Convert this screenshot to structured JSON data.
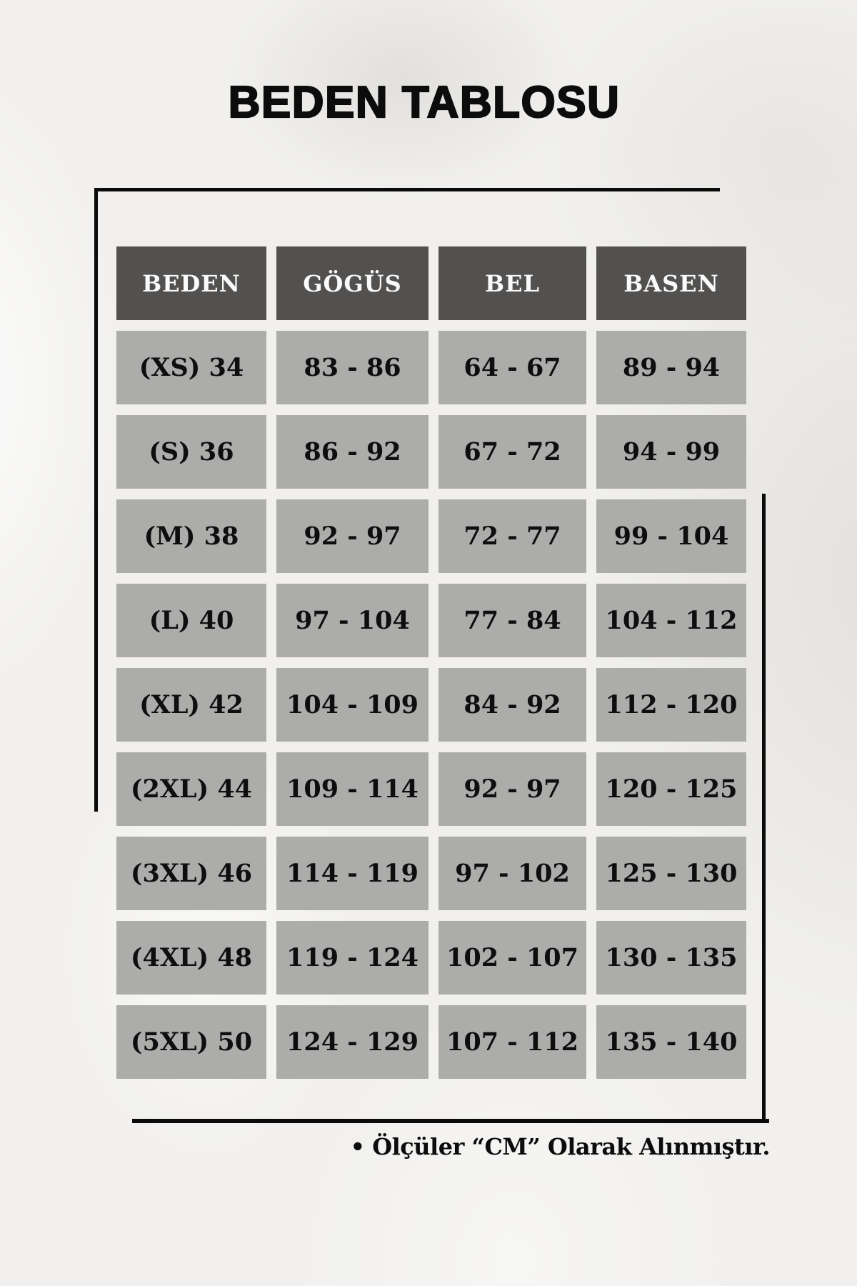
{
  "page": {
    "title": "BEDEN TABLOSU",
    "footnote": "• Ölçüler “CM” Olarak Alınmıştır."
  },
  "table": {
    "headers": [
      "BEDEN",
      "GÖGÜS",
      "BEL",
      "BASEN"
    ],
    "rows": [
      [
        "(XS) 34",
        "83 - 86",
        "64 - 67",
        "89 - 94"
      ],
      [
        "(S) 36",
        "86 - 92",
        "67 - 72",
        "94 - 99"
      ],
      [
        "(M) 38",
        "92 - 97",
        "72 - 77",
        "99 - 104"
      ],
      [
        "(L) 40",
        "97 - 104",
        "77 - 84",
        "104 - 112"
      ],
      [
        "(XL) 42",
        "104 - 109",
        "84 - 92",
        "112 - 120"
      ],
      [
        "(2XL) 44",
        "109 - 114",
        "92 - 97",
        "120 - 125"
      ],
      [
        "(3XL) 46",
        "114 - 119",
        "97 - 102",
        "125 - 130"
      ],
      [
        "(4XL) 48",
        "119 - 124",
        "102 - 107",
        "130 - 135"
      ],
      [
        "(5XL) 50",
        "124 - 129",
        "107 - 112",
        "135 - 140"
      ]
    ]
  },
  "theme": {
    "page_bg": "#f1f0ee",
    "header_bg": "#53514f",
    "header_text": "#fafafa",
    "cell_bg": "#acacab",
    "cell_text": "#0e0e0e",
    "frame": "#0b0b0b",
    "title_text": "#0c0c0c"
  },
  "chart_data": {
    "type": "table",
    "title": "BEDEN TABLOSU",
    "columns": [
      "BEDEN",
      "GÖGÜS",
      "BEL",
      "BASEN"
    ],
    "rows": [
      [
        "(XS) 34",
        "83 - 86",
        "64 - 67",
        "89 - 94"
      ],
      [
        "(S) 36",
        "86 - 92",
        "67 - 72",
        "94 - 99"
      ],
      [
        "(M) 38",
        "92 - 97",
        "72 - 77",
        "99 - 104"
      ],
      [
        "(L) 40",
        "97 - 104",
        "77 - 84",
        "104 - 112"
      ],
      [
        "(XL) 42",
        "104 - 109",
        "84 - 92",
        "112 - 120"
      ],
      [
        "(2XL) 44",
        "109 - 114",
        "92 - 97",
        "120 - 125"
      ],
      [
        "(3XL) 46",
        "114 - 119",
        "97 - 102",
        "125 - 130"
      ],
      [
        "(4XL) 48",
        "119 - 124",
        "102 - 107",
        "130 - 135"
      ],
      [
        "(5XL) 50",
        "124 - 129",
        "107 - 112",
        "135 - 140"
      ]
    ],
    "note": "Ölçüler “CM” Olarak Alınmıştır.",
    "units": "cm"
  }
}
